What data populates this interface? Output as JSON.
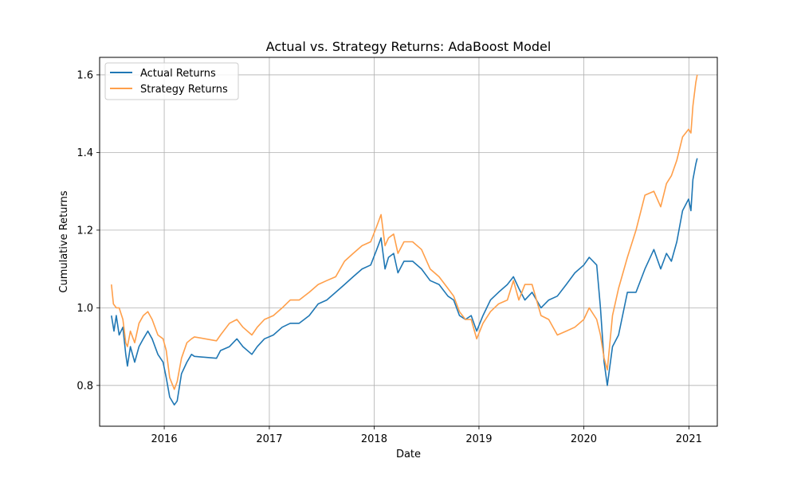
{
  "chart_data": {
    "type": "line",
    "title": "Actual vs. Strategy Returns: AdaBoost Model",
    "xlabel": "Date",
    "ylabel": "Cumulative Returns",
    "xlim": [
      "2015-05-21",
      "2021-04-10"
    ],
    "ylim": [
      0.695,
      1.645
    ],
    "x_ticks": [
      "2016",
      "2017",
      "2018",
      "2019",
      "2020",
      "2021"
    ],
    "x_tick_dates": [
      "2016-01-01",
      "2017-01-01",
      "2018-01-01",
      "2019-01-01",
      "2020-01-01",
      "2021-01-01"
    ],
    "y_ticks": [
      "0.8",
      "1.0",
      "1.2",
      "1.4",
      "1.6"
    ],
    "y_tick_values": [
      0.8,
      1.0,
      1.2,
      1.4,
      1.6
    ],
    "grid": true,
    "legend_position": "top-left",
    "series": [
      {
        "name": "Actual Returns",
        "color": "#1f77b4",
        "points": [
          [
            "2015-07-01",
            0.98
          ],
          [
            "2015-07-10",
            0.94
          ],
          [
            "2015-07-18",
            0.98
          ],
          [
            "2015-07-28",
            0.93
          ],
          [
            "2015-08-10",
            0.95
          ],
          [
            "2015-08-20",
            0.88
          ],
          [
            "2015-08-26",
            0.85
          ],
          [
            "2015-09-05",
            0.9
          ],
          [
            "2015-09-20",
            0.86
          ],
          [
            "2015-10-05",
            0.9
          ],
          [
            "2015-10-20",
            0.92
          ],
          [
            "2015-11-05",
            0.94
          ],
          [
            "2015-11-20",
            0.92
          ],
          [
            "2015-12-10",
            0.88
          ],
          [
            "2015-12-28",
            0.86
          ],
          [
            "2016-01-08",
            0.82
          ],
          [
            "2016-01-20",
            0.77
          ],
          [
            "2016-02-05",
            0.75
          ],
          [
            "2016-02-15",
            0.76
          ],
          [
            "2016-03-01",
            0.83
          ],
          [
            "2016-03-20",
            0.86
          ],
          [
            "2016-04-05",
            0.88
          ],
          [
            "2016-04-15",
            0.875
          ],
          [
            "2016-07-01",
            0.87
          ],
          [
            "2016-07-15",
            0.89
          ],
          [
            "2016-08-15",
            0.9
          ],
          [
            "2016-09-10",
            0.92
          ],
          [
            "2016-10-01",
            0.9
          ],
          [
            "2016-11-01",
            0.88
          ],
          [
            "2016-11-20",
            0.9
          ],
          [
            "2016-12-15",
            0.92
          ],
          [
            "2017-01-15",
            0.93
          ],
          [
            "2017-02-15",
            0.95
          ],
          [
            "2017-03-15",
            0.96
          ],
          [
            "2017-04-15",
            0.96
          ],
          [
            "2017-05-20",
            0.98
          ],
          [
            "2017-06-20",
            1.01
          ],
          [
            "2017-07-20",
            1.02
          ],
          [
            "2017-08-20",
            1.04
          ],
          [
            "2017-09-20",
            1.06
          ],
          [
            "2017-10-20",
            1.08
          ],
          [
            "2017-11-20",
            1.1
          ],
          [
            "2017-12-20",
            1.11
          ],
          [
            "2018-01-10",
            1.15
          ],
          [
            "2018-01-25",
            1.18
          ],
          [
            "2018-02-08",
            1.1
          ],
          [
            "2018-02-20",
            1.13
          ],
          [
            "2018-03-10",
            1.14
          ],
          [
            "2018-03-25",
            1.09
          ],
          [
            "2018-04-15",
            1.12
          ],
          [
            "2018-05-15",
            1.12
          ],
          [
            "2018-06-15",
            1.1
          ],
          [
            "2018-07-15",
            1.07
          ],
          [
            "2018-08-15",
            1.06
          ],
          [
            "2018-09-15",
            1.03
          ],
          [
            "2018-10-05",
            1.02
          ],
          [
            "2018-10-25",
            0.98
          ],
          [
            "2018-11-15",
            0.97
          ],
          [
            "2018-12-05",
            0.98
          ],
          [
            "2018-12-24",
            0.94
          ],
          [
            "2019-01-15",
            0.98
          ],
          [
            "2019-02-10",
            1.02
          ],
          [
            "2019-03-10",
            1.04
          ],
          [
            "2019-04-10",
            1.06
          ],
          [
            "2019-05-01",
            1.08
          ],
          [
            "2019-05-20",
            1.05
          ],
          [
            "2019-06-10",
            1.02
          ],
          [
            "2019-07-05",
            1.04
          ],
          [
            "2019-08-05",
            1.0
          ],
          [
            "2019-09-01",
            1.02
          ],
          [
            "2019-10-01",
            1.03
          ],
          [
            "2019-11-01",
            1.06
          ],
          [
            "2019-12-01",
            1.09
          ],
          [
            "2020-01-01",
            1.11
          ],
          [
            "2020-01-20",
            1.13
          ],
          [
            "2020-02-15",
            1.11
          ],
          [
            "2020-02-28",
            1.0
          ],
          [
            "2020-03-12",
            0.86
          ],
          [
            "2020-03-23",
            0.8
          ],
          [
            "2020-04-10",
            0.9
          ],
          [
            "2020-05-01",
            0.93
          ],
          [
            "2020-06-01",
            1.04
          ],
          [
            "2020-07-01",
            1.04
          ],
          [
            "2020-08-01",
            1.1
          ],
          [
            "2020-09-01",
            1.15
          ],
          [
            "2020-09-25",
            1.1
          ],
          [
            "2020-10-15",
            1.14
          ],
          [
            "2020-11-01",
            1.12
          ],
          [
            "2020-11-20",
            1.17
          ],
          [
            "2020-12-10",
            1.25
          ],
          [
            "2020-12-31",
            1.28
          ],
          [
            "2021-01-08",
            1.25
          ],
          [
            "2021-01-15",
            1.33
          ],
          [
            "2021-01-25",
            1.37
          ],
          [
            "2021-01-30",
            1.385
          ]
        ]
      },
      {
        "name": "Strategy Returns",
        "color": "#ff9f4a",
        "points": [
          [
            "2015-07-01",
            1.06
          ],
          [
            "2015-07-08",
            1.01
          ],
          [
            "2015-07-18",
            1.0
          ],
          [
            "2015-07-28",
            1.0
          ],
          [
            "2015-08-10",
            0.97
          ],
          [
            "2015-08-20",
            0.91
          ],
          [
            "2015-08-26",
            0.9
          ],
          [
            "2015-09-05",
            0.94
          ],
          [
            "2015-09-20",
            0.91
          ],
          [
            "2015-10-05",
            0.96
          ],
          [
            "2015-10-20",
            0.98
          ],
          [
            "2015-11-05",
            0.99
          ],
          [
            "2015-11-20",
            0.97
          ],
          [
            "2015-12-10",
            0.93
          ],
          [
            "2015-12-28",
            0.92
          ],
          [
            "2016-01-08",
            0.89
          ],
          [
            "2016-01-20",
            0.82
          ],
          [
            "2016-02-05",
            0.79
          ],
          [
            "2016-02-15",
            0.81
          ],
          [
            "2016-03-01",
            0.87
          ],
          [
            "2016-03-20",
            0.91
          ],
          [
            "2016-04-05",
            0.92
          ],
          [
            "2016-04-15",
            0.925
          ],
          [
            "2016-07-01",
            0.915
          ],
          [
            "2016-07-15",
            0.93
          ],
          [
            "2016-08-15",
            0.96
          ],
          [
            "2016-09-10",
            0.97
          ],
          [
            "2016-10-01",
            0.95
          ],
          [
            "2016-11-01",
            0.93
          ],
          [
            "2016-11-20",
            0.95
          ],
          [
            "2016-12-15",
            0.97
          ],
          [
            "2017-01-15",
            0.98
          ],
          [
            "2017-02-15",
            1.0
          ],
          [
            "2017-03-15",
            1.02
          ],
          [
            "2017-04-15",
            1.02
          ],
          [
            "2017-05-20",
            1.04
          ],
          [
            "2017-06-20",
            1.06
          ],
          [
            "2017-07-20",
            1.07
          ],
          [
            "2017-08-20",
            1.08
          ],
          [
            "2017-09-20",
            1.12
          ],
          [
            "2017-10-20",
            1.14
          ],
          [
            "2017-11-20",
            1.16
          ],
          [
            "2017-12-20",
            1.17
          ],
          [
            "2018-01-10",
            1.21
          ],
          [
            "2018-01-25",
            1.24
          ],
          [
            "2018-02-08",
            1.16
          ],
          [
            "2018-02-20",
            1.18
          ],
          [
            "2018-03-10",
            1.19
          ],
          [
            "2018-03-25",
            1.14
          ],
          [
            "2018-04-15",
            1.17
          ],
          [
            "2018-05-15",
            1.17
          ],
          [
            "2018-06-15",
            1.15
          ],
          [
            "2018-07-15",
            1.1
          ],
          [
            "2018-08-15",
            1.08
          ],
          [
            "2018-09-15",
            1.05
          ],
          [
            "2018-10-05",
            1.03
          ],
          [
            "2018-10-25",
            0.99
          ],
          [
            "2018-11-15",
            0.97
          ],
          [
            "2018-12-05",
            0.97
          ],
          [
            "2018-12-24",
            0.92
          ],
          [
            "2019-01-15",
            0.96
          ],
          [
            "2019-02-10",
            0.99
          ],
          [
            "2019-03-10",
            1.01
          ],
          [
            "2019-04-10",
            1.02
          ],
          [
            "2019-05-01",
            1.07
          ],
          [
            "2019-05-20",
            1.02
          ],
          [
            "2019-06-10",
            1.06
          ],
          [
            "2019-07-05",
            1.06
          ],
          [
            "2019-08-05",
            0.98
          ],
          [
            "2019-09-01",
            0.97
          ],
          [
            "2019-10-01",
            0.93
          ],
          [
            "2019-11-01",
            0.94
          ],
          [
            "2019-12-01",
            0.95
          ],
          [
            "2020-01-01",
            0.97
          ],
          [
            "2020-01-20",
            1.0
          ],
          [
            "2020-02-15",
            0.97
          ],
          [
            "2020-02-28",
            0.93
          ],
          [
            "2020-03-12",
            0.87
          ],
          [
            "2020-03-23",
            0.84
          ],
          [
            "2020-04-10",
            0.98
          ],
          [
            "2020-05-01",
            1.05
          ],
          [
            "2020-06-01",
            1.13
          ],
          [
            "2020-07-01",
            1.2
          ],
          [
            "2020-08-01",
            1.29
          ],
          [
            "2020-09-01",
            1.3
          ],
          [
            "2020-09-25",
            1.26
          ],
          [
            "2020-10-15",
            1.32
          ],
          [
            "2020-11-01",
            1.34
          ],
          [
            "2020-11-20",
            1.38
          ],
          [
            "2020-12-10",
            1.44
          ],
          [
            "2020-12-31",
            1.46
          ],
          [
            "2021-01-08",
            1.45
          ],
          [
            "2021-01-15",
            1.52
          ],
          [
            "2021-01-25",
            1.58
          ],
          [
            "2021-01-30",
            1.6
          ]
        ]
      }
    ]
  }
}
